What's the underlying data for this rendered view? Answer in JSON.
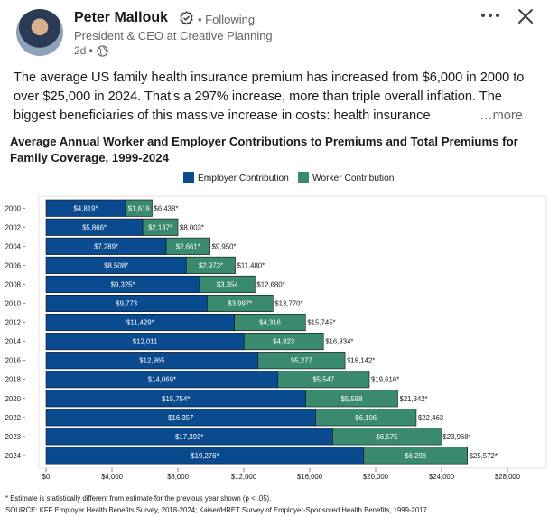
{
  "post": {
    "author_name": "Peter Mallouk",
    "follow_status": "• Following",
    "author_headline": "President & CEO at Creative Planning",
    "timestamp": "2d •",
    "more_icon": "more-horizontal-icon",
    "close_icon": "close-icon",
    "text": "The average US family health insurance premium has increased from $6,000 in 2000 to over $25,000 in 2024. That's a 297% increase, more than triple overall inflation. The biggest beneficiaries of this massive increase in costs: health insurance",
    "see_more": "…more"
  },
  "chart_data": {
    "type": "bar",
    "stacked": true,
    "orientation": "horizontal",
    "title": "Average Annual Worker and Employer Contributions to Premiums and Total Premiums for Family Coverage, 1999-2024",
    "categories": [
      "2000",
      "2002",
      "2004",
      "2006",
      "2008",
      "2010",
      "2012",
      "2014",
      "2016",
      "2018",
      "2020",
      "2022",
      "2023",
      "2024"
    ],
    "series": [
      {
        "name": "Employer Contribution",
        "color": "#0a4a8f",
        "values": [
          4819,
          5866,
          7289,
          8508,
          9325,
          9773,
          11429,
          12011,
          12865,
          14069,
          15754,
          16357,
          17393,
          19276
        ],
        "labels": [
          "$4,819*",
          "$5,866*",
          "$7,289*",
          "$8,508*",
          "$9,325*",
          "$9,773",
          "$11,429*",
          "$12,011",
          "$12,865",
          "$14,069*",
          "$15,754*",
          "$16,357",
          "$17,393*",
          "$19,276*"
        ]
      },
      {
        "name": "Worker Contribution",
        "color": "#3a8a6e",
        "values": [
          1619,
          2137,
          2661,
          2973,
          3354,
          3997,
          4316,
          4823,
          5277,
          5547,
          5588,
          6106,
          6575,
          6296
        ],
        "labels": [
          "$1,619",
          "$2,137*",
          "$2,661*",
          "$2,973*",
          "$3,354",
          "$3,997*",
          "$4,316",
          "$4,823",
          "$5,277",
          "$5,547",
          "$5,588",
          "$6,106",
          "$6,575",
          "$6,296"
        ]
      }
    ],
    "totals": [
      "$6,438*",
      "$8,003*",
      "$9,950*",
      "$11,480*",
      "$12,680*",
      "$13,770*",
      "$15,745*",
      "$16,834*",
      "$18,142*",
      "$19,616*",
      "$21,342*",
      "$22,463",
      "$23,968*",
      "$25,572*"
    ],
    "xlim": [
      0,
      28000
    ],
    "xticks": [
      0,
      4000,
      8000,
      12000,
      16000,
      20000,
      24000,
      28000
    ],
    "xtick_labels": [
      "$0",
      "$4,000",
      "$8,000",
      "$12,000",
      "$16,000",
      "$20,000",
      "$24,000",
      "$28,000"
    ],
    "legend_position": "top-center",
    "grid": false,
    "footnote": "* Estimate is statistically different from estimate for the previous year shown (p < .05).",
    "source": "SOURCE: KFF Employer Health Benefits Survey, 2018-2024; Kaiser/HRET Survey of Employer-Sponsored Health Benefits, 1999-2017"
  }
}
